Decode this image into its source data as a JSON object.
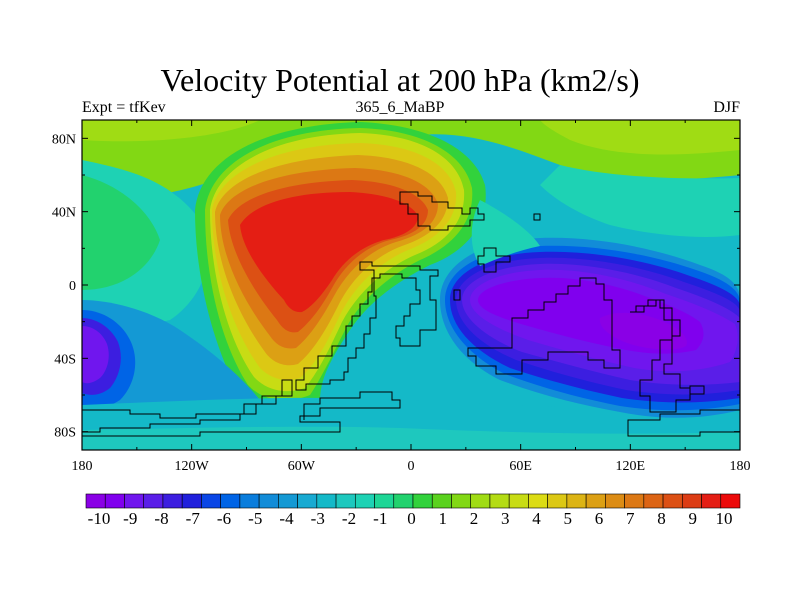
{
  "title": "Velocity Potential at 200 hPa (km2/s)",
  "left_string": "Expt = tfKev",
  "center_string": "365_6_MaBP",
  "right_string": "DJF",
  "map": {
    "projection": "cylindrical equidistant",
    "lon_range": [
      -180,
      180
    ],
    "lat_range": [
      -90,
      90
    ],
    "lon_ticks": [
      {
        "value": -180,
        "label": "180"
      },
      {
        "value": -120,
        "label": "120W"
      },
      {
        "value": -60,
        "label": "60W"
      },
      {
        "value": 0,
        "label": "0"
      },
      {
        "value": 60,
        "label": "60E"
      },
      {
        "value": 120,
        "label": "120E"
      },
      {
        "value": 180,
        "label": "180"
      }
    ],
    "lat_ticks": [
      {
        "value": 80,
        "label": "80N"
      },
      {
        "value": 40,
        "label": "40N"
      },
      {
        "value": 0,
        "label": "0"
      },
      {
        "value": -40,
        "label": "40S"
      },
      {
        "value": -80,
        "label": "80S"
      }
    ],
    "field_centers": [
      {
        "lon": -60,
        "lat": 25,
        "value": 10.5,
        "description": "maximum"
      },
      {
        "lon": 75,
        "lat": -5,
        "value": -10.5,
        "description": "minimum"
      },
      {
        "lon": 150,
        "lat": -30,
        "value": -9.5,
        "description": "minimum"
      },
      {
        "lon": -175,
        "lat": -35,
        "value": -7.5,
        "description": "minimum"
      }
    ]
  },
  "colorbar": {
    "labels": [
      "-10",
      "-9",
      "-8",
      "-7",
      "-6",
      "-5",
      "-4",
      "-3",
      "-2",
      "-1",
      "0",
      "1",
      "2",
      "3",
      "4",
      "5",
      "6",
      "7",
      "8",
      "9",
      "10"
    ],
    "colors": [
      "#8a00e6",
      "#8000ee",
      "#7016ee",
      "#5a1ee8",
      "#3c1ee0",
      "#2020dc",
      "#0a46e6",
      "#0064e6",
      "#0a7ddc",
      "#128cd8",
      "#1499d4",
      "#18aad2",
      "#14b9c8",
      "#1ec8be",
      "#1ed2b4",
      "#1ed696",
      "#22d26e",
      "#32d23c",
      "#5ad21e",
      "#82d814",
      "#a0dc14",
      "#b4dc14",
      "#c8dc14",
      "#dcdc14",
      "#dcc814",
      "#dcb414",
      "#dca014",
      "#dc8c14",
      "#dc7814",
      "#dc6414",
      "#dc5014",
      "#dc3c14",
      "#e41e14",
      "#ec0a0a"
    ]
  }
}
